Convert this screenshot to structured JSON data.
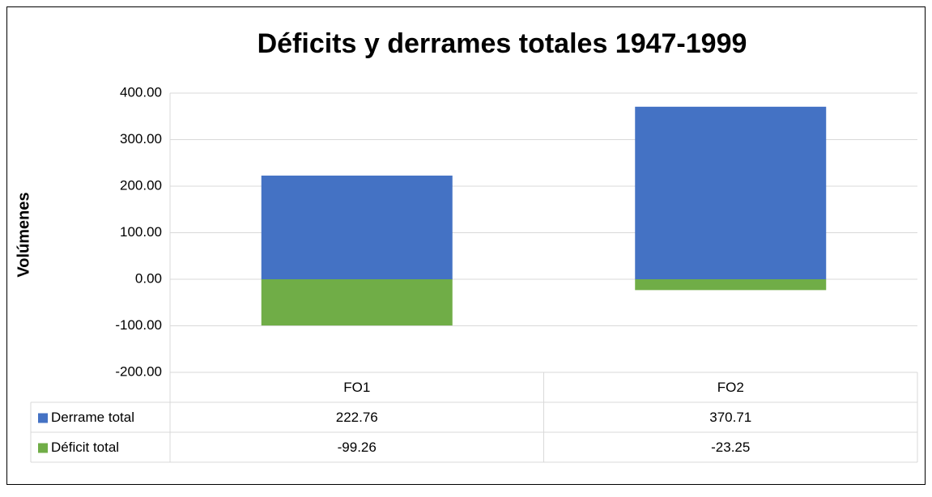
{
  "chart_data": {
    "type": "bar",
    "title": "Déficits y derrames totales 1947-1999",
    "y_label": "Volúmenes",
    "categories": [
      "FO1",
      "FO2"
    ],
    "series": [
      {
        "name": "Derrame total",
        "color": "#4472c4",
        "values": [
          222.76,
          370.71
        ]
      },
      {
        "name": "Déficit total",
        "color": "#70ad47",
        "values": [
          -99.26,
          -23.25
        ]
      }
    ],
    "ylim": [
      -200,
      400
    ],
    "yticks": [
      {
        "value": -200,
        "label": "-200.00"
      },
      {
        "value": -100,
        "label": "-100.00"
      },
      {
        "value": 0,
        "label": "0.00"
      },
      {
        "value": 100,
        "label": "100.00"
      },
      {
        "value": 200,
        "label": "200.00"
      },
      {
        "value": 300,
        "label": "300.00"
      },
      {
        "value": 400,
        "label": "400.00"
      }
    ],
    "grid": true,
    "data_table": true
  }
}
